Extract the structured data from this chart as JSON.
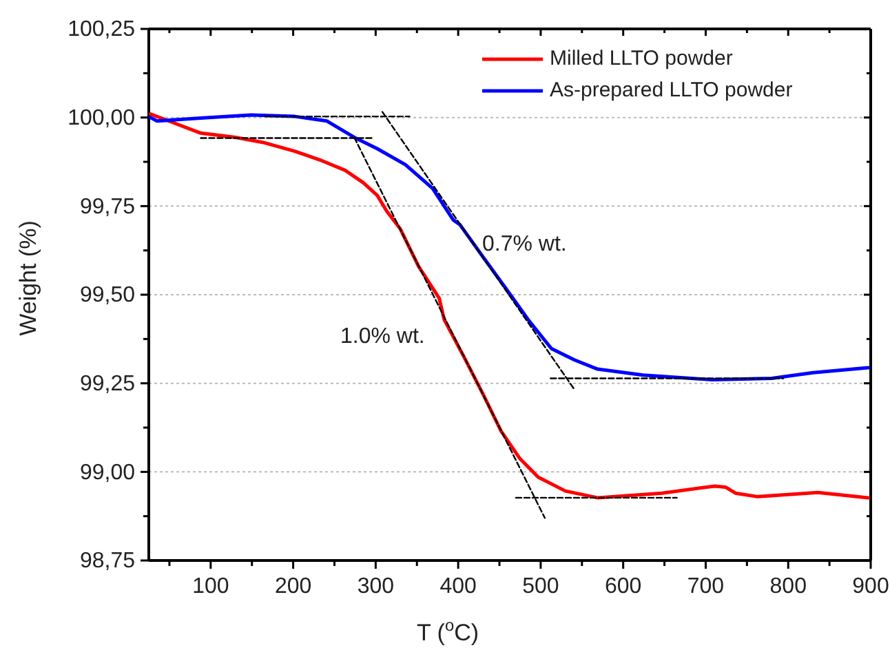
{
  "chart_data": {
    "type": "line",
    "xlabel": "T ($^{o}$C)",
    "ylabel": "Weight (%)",
    "xlim": [
      25,
      900
    ],
    "ylim": [
      98.75,
      100.25
    ],
    "xticks": [
      {
        "value": 50,
        "label": null
      },
      100,
      {
        "value": 150,
        "label": null
      },
      200,
      {
        "value": 250,
        "label": null
      },
      300,
      {
        "value": 350,
        "label": null
      },
      400,
      {
        "value": 450,
        "label": null
      },
      500,
      {
        "value": 550,
        "label": null
      },
      600,
      {
        "value": 650,
        "label": null
      },
      700,
      {
        "value": 750,
        "label": null
      },
      800,
      {
        "value": 850,
        "label": null
      },
      900
    ],
    "yticks": [
      {
        "value": 98.75,
        "label": "98,75"
      },
      {
        "value": 98.875,
        "label": null
      },
      {
        "value": 99,
        "label": "99,00"
      },
      {
        "value": 99.125,
        "label": null
      },
      {
        "value": 99.25,
        "label": "99,25"
      },
      {
        "value": 99.375,
        "label": null
      },
      {
        "value": 99.5,
        "label": "99,50"
      },
      {
        "value": 99.625,
        "label": null
      },
      {
        "value": 99.75,
        "label": "99,75"
      },
      {
        "value": 99.875,
        "label": null
      },
      {
        "value": 100,
        "label": "100,00"
      },
      {
        "value": 100.125,
        "label": null
      },
      {
        "value": 100.25,
        "label": "100,25"
      }
    ],
    "grid": "y",
    "legend": "top right",
    "series": [
      {
        "name": "Milled LLTO powder",
        "color": "#ff0000",
        "x": [
          27,
          88,
          130,
          163,
          202,
          235,
          263,
          285,
          302,
          313,
          330,
          352,
          377,
          383,
          408,
          430,
          452,
          475,
          497,
          530,
          569,
          647,
          711,
          724,
          736,
          763,
          836,
          897
        ],
        "values": [
          100.01,
          99.956,
          99.944,
          99.93,
          99.905,
          99.878,
          99.851,
          99.816,
          99.78,
          99.737,
          99.685,
          99.58,
          99.49,
          99.43,
          99.32,
          99.22,
          99.115,
          99.037,
          98.985,
          98.946,
          98.927,
          98.94,
          98.96,
          98.957,
          98.94,
          98.93,
          98.942,
          98.927
        ]
      },
      {
        "name": "As-prepared LLTO powder",
        "color": "#0000ff",
        "x": [
          27,
          35,
          91,
          149,
          202,
          241,
          274,
          302,
          336,
          369,
          394,
          402,
          430,
          458,
          486,
          513,
          541,
          569,
          624,
          708,
          780,
          830,
          897
        ],
        "values": [
          100.0,
          99.99,
          99.999,
          100.007,
          100.003,
          99.99,
          99.944,
          99.912,
          99.867,
          99.8,
          99.711,
          99.698,
          99.607,
          99.517,
          99.426,
          99.348,
          99.316,
          99.29,
          99.273,
          99.26,
          99.264,
          99.28,
          99.294
        ]
      },
      {
        "color": "#000000",
        "line_style": "dashed",
        "x": [
          88,
          298
        ],
        "values": [
          99.942,
          99.942
        ]
      },
      {
        "color": "#000000",
        "line_style": "dashed",
        "x": [
          274,
          505
        ],
        "values": [
          99.944,
          98.87
        ]
      },
      {
        "color": "#000000",
        "line_style": "dashed",
        "x": [
          470,
          665
        ],
        "values": [
          98.927,
          98.927
        ]
      },
      {
        "color": "#000000",
        "line_style": "dashed",
        "x": [
          166,
          341
        ],
        "values": [
          100.003,
          100.003
        ]
      },
      {
        "color": "#000000",
        "line_style": "dashed",
        "x": [
          308,
          541
        ],
        "values": [
          100.016,
          99.232
        ]
      },
      {
        "color": "#000000",
        "line_style": "dashed",
        "x": [
          512,
          794
        ],
        "values": [
          99.264,
          99.264
        ]
      }
    ],
    "annotations": [
      "0.7% wt.",
      "1.0% wt."
    ]
  }
}
